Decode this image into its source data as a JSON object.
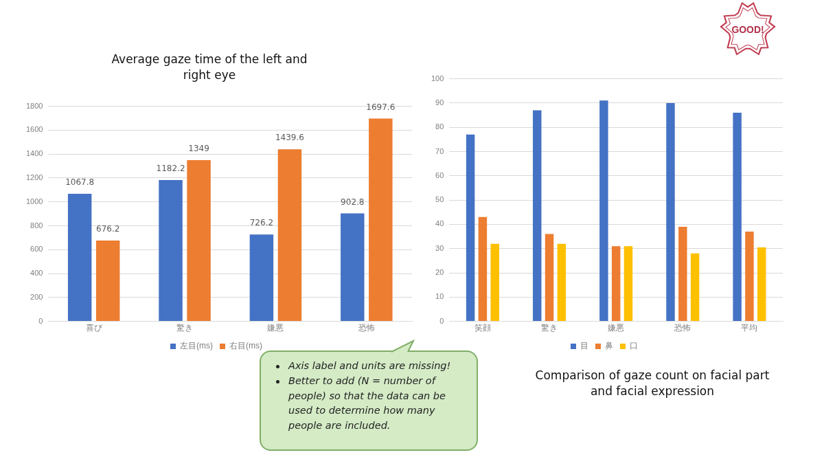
{
  "chart_data": [
    {
      "type": "bar",
      "title": "Average gaze time of the left and right eye",
      "categories": [
        "喜び",
        "驚き",
        "嫌悪",
        "恐怖"
      ],
      "series": [
        {
          "name": "左目(ms)",
          "color": "#4472c4",
          "values": [
            1067.8,
            1182.2,
            726.2,
            902.8
          ]
        },
        {
          "name": "右目(ms)",
          "color": "#ed7d31",
          "values": [
            676.2,
            1349,
            1439.6,
            1697.6
          ]
        }
      ],
      "ylim": [
        0,
        1800
      ],
      "yticks": [
        0,
        200,
        400,
        600,
        800,
        1000,
        1200,
        1400,
        1600,
        1800
      ],
      "grid": "y",
      "legend": "bottom",
      "data_labels": true,
      "annotations": [
        "Axis label and units are missing!",
        "Better to add (N = number of people) so that the data can be used to determine how many people are included."
      ]
    },
    {
      "type": "bar",
      "title": "Comparison of gaze count on facial part and facial expression",
      "categories": [
        "笑顔",
        "驚き",
        "嫌悪",
        "恐怖",
        "平均"
      ],
      "series": [
        {
          "name": "目",
          "color": "#4472c4",
          "values": [
            77,
            87,
            91,
            90,
            86
          ]
        },
        {
          "name": "鼻",
          "color": "#ed7d31",
          "values": [
            43,
            36,
            31,
            39,
            37
          ]
        },
        {
          "name": "口",
          "color": "#ffc000",
          "values": [
            32,
            32,
            31,
            28,
            30.5
          ]
        }
      ],
      "ylim": [
        0,
        100
      ],
      "yticks": [
        0,
        10,
        20,
        30,
        40,
        50,
        60,
        70,
        80,
        90,
        100
      ],
      "grid": "y",
      "legend": "bottom",
      "annotations": [
        "GOOD!"
      ]
    }
  ]
}
